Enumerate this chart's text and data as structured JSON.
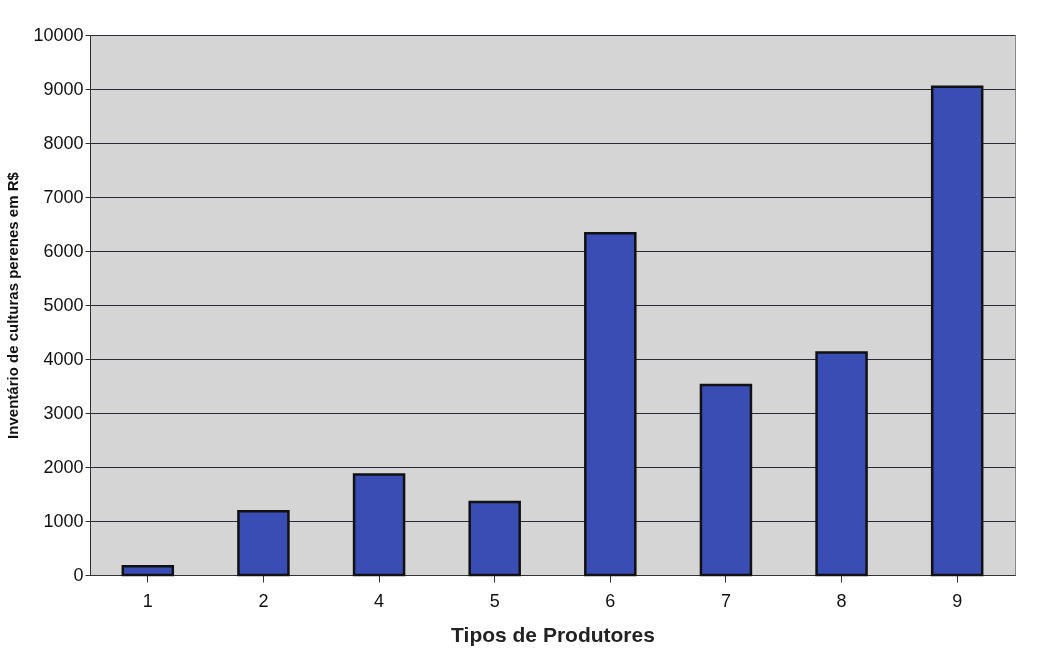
{
  "chart_data": {
    "type": "bar",
    "xlabel": "Tipos de Produtores",
    "ylabel": "Inventário de culturas perenes em R$",
    "categories": [
      "1",
      "2",
      "4",
      "5",
      "6",
      "7",
      "8",
      "9"
    ],
    "values": [
      160,
      1180,
      1860,
      1350,
      6330,
      3520,
      4120,
      9040
    ],
    "color": "#3a4db5",
    "ylim": [
      0,
      10000
    ],
    "yticks": [
      0,
      1000,
      2000,
      3000,
      4000,
      5000,
      6000,
      7000,
      8000,
      9000,
      10000
    ],
    "grid": "y"
  }
}
